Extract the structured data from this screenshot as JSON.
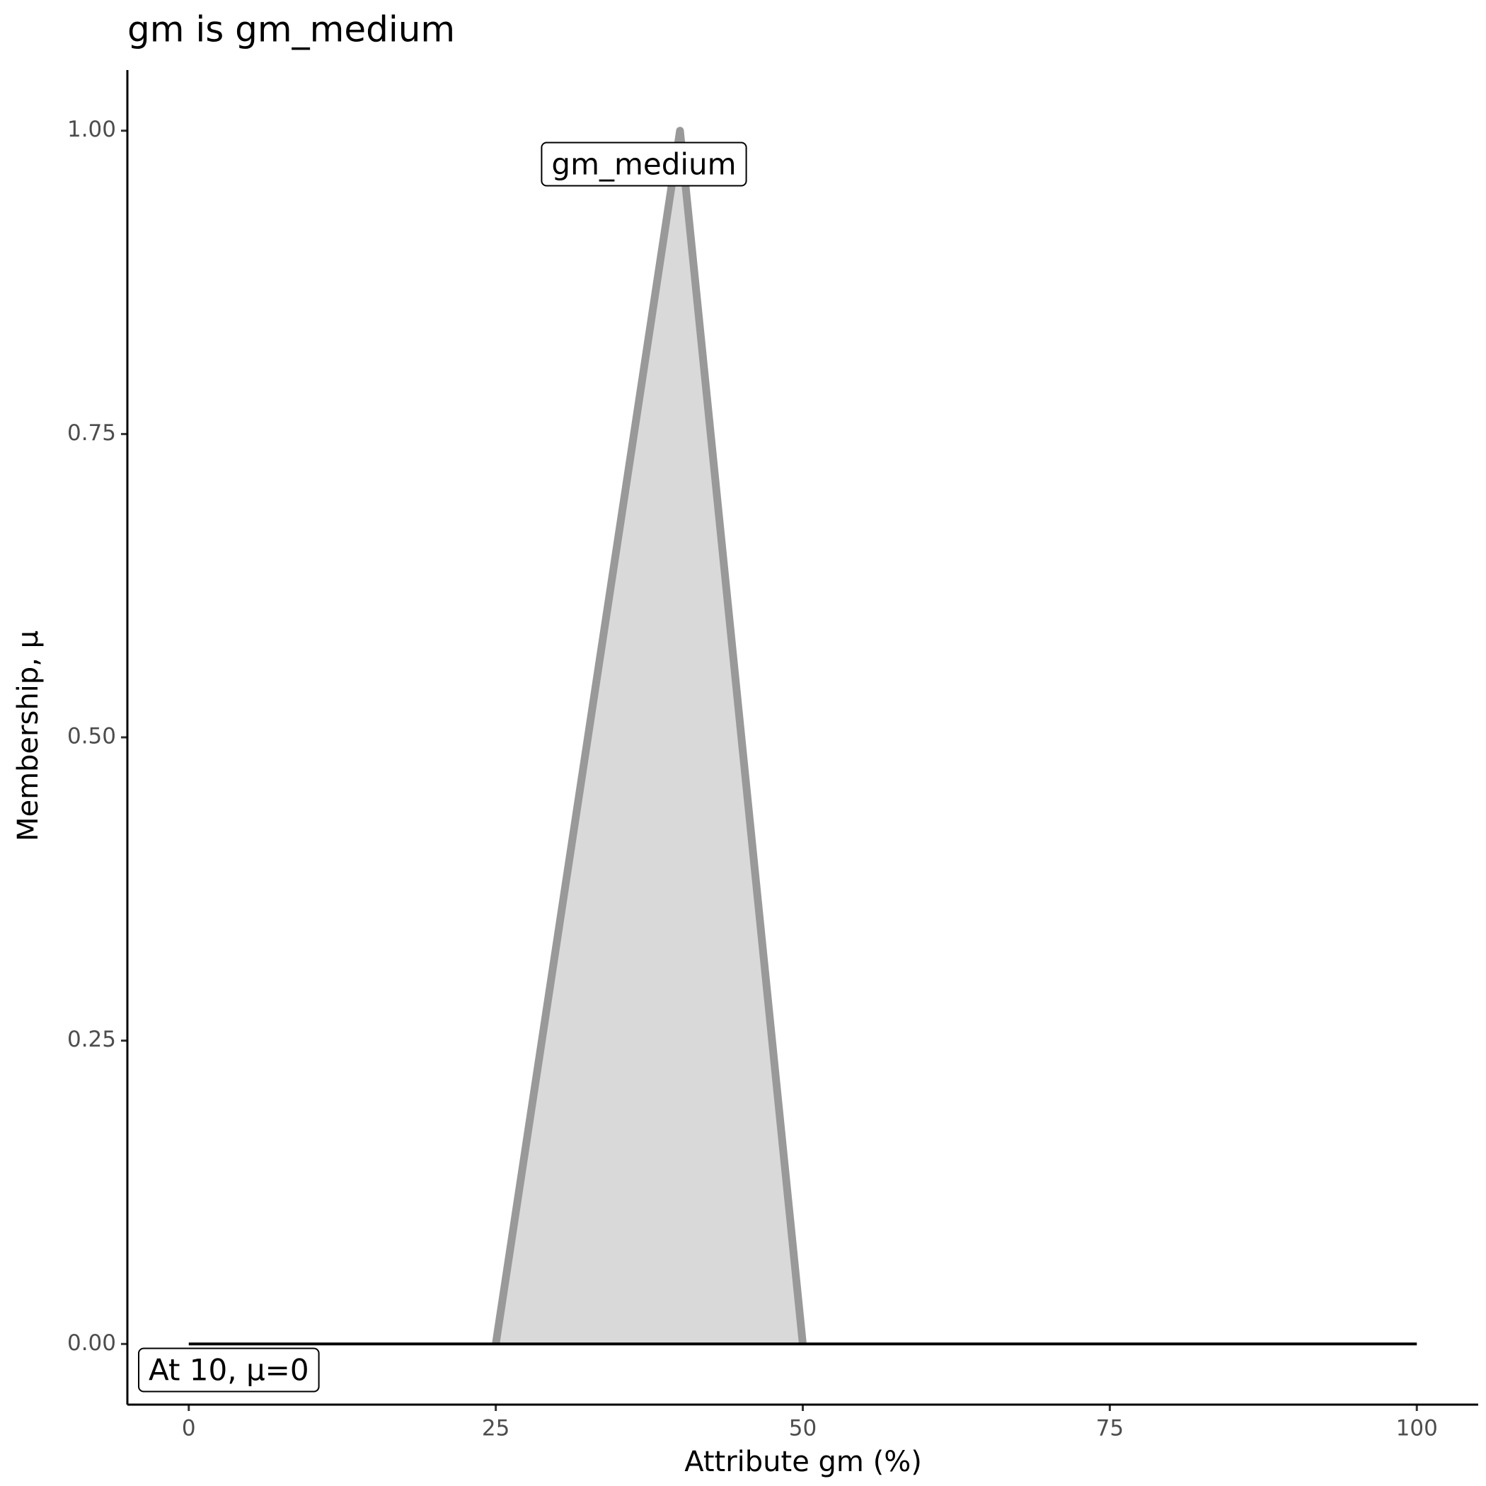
{
  "chart_data": {
    "type": "line",
    "title": "gm is gm_medium",
    "x_label": "Attribute gm (%)",
    "y_label": "Membership, μ",
    "series": [
      {
        "color": "#999999",
        "fill": "#d9d9d9",
        "x": [
          25,
          40,
          50
        ],
        "values": [
          0,
          1,
          0
        ]
      },
      {
        "color": "#000000",
        "x": [
          0,
          100
        ],
        "values": [
          0,
          0
        ]
      }
    ],
    "annotations": [
      "gm_medium",
      "At 10, μ=0"
    ],
    "xlim": [
      -5,
      105
    ],
    "ylim": [
      -0.05,
      1.05
    ],
    "xticks": [
      0,
      25,
      50,
      75,
      100
    ],
    "yticks": [
      {
        "value": 0,
        "label": "0.00"
      },
      {
        "value": 0.25,
        "label": "0.25"
      },
      {
        "value": 0.5,
        "label": "0.50"
      },
      {
        "value": 0.75,
        "label": "0.75"
      },
      {
        "value": 1,
        "label": "1.00"
      }
    ]
  }
}
